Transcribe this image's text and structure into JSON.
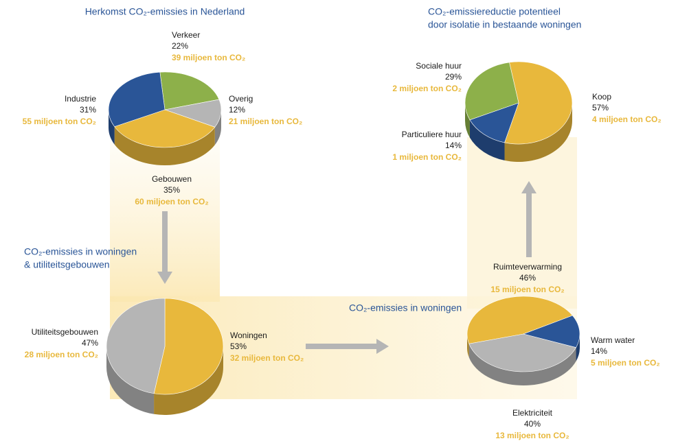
{
  "chart_data": [
    {
      "type": "pie",
      "title": [
        "Herkomst CO₂-emissies in Nederland"
      ],
      "categories": [
        "Verkeer",
        "Overig",
        "Gebouwen",
        "Industrie"
      ],
      "values": [
        22,
        12,
        35,
        31
      ],
      "value_labels": [
        "22%",
        "12%",
        "35%",
        "31%"
      ],
      "amount_labels": [
        "39 miljoen ton CO₂",
        "21 miljoen ton CO₂",
        "60 miljoen ton CO₂",
        "55 miljoen ton CO₂"
      ],
      "colors": [
        "#8db04a",
        "#b5b5b5",
        "#e8b83c",
        "#2a5597"
      ]
    },
    {
      "type": "pie",
      "title": [
        "CO₂-emissies in woningen",
        "& utiliteitsgebouwen"
      ],
      "categories": [
        "Woningen",
        "Utiliteitsgebouwen"
      ],
      "values": [
        53,
        47
      ],
      "value_labels": [
        "53%",
        "47%"
      ],
      "amount_labels": [
        "32 miljoen ton CO₂",
        "28 miljoen ton CO₂"
      ],
      "colors": [
        "#e8b83c",
        "#b5b5b5"
      ]
    },
    {
      "type": "pie",
      "title": [
        "CO₂-emissies in woningen"
      ],
      "categories": [
        "Ruimteverwarming",
        "Warm water",
        "Elektriciteit"
      ],
      "values": [
        46,
        14,
        40
      ],
      "value_labels": [
        "46%",
        "14%",
        "40%"
      ],
      "amount_labels": [
        "15 miljoen ton CO₂",
        "5 miljoen ton CO₂",
        "13 miljoen ton CO₂"
      ],
      "colors": [
        "#e8b83c",
        "#2a5597",
        "#b5b5b5"
      ]
    },
    {
      "type": "pie",
      "title": [
        "CO₂-emissiereductie potentieel",
        "door isolatie in bestaande woningen"
      ],
      "categories": [
        "Koop",
        "Particuliere huur",
        "Sociale huur"
      ],
      "values": [
        57,
        14,
        29
      ],
      "value_labels": [
        "57%",
        "14%",
        "29%"
      ],
      "amount_labels": [
        "4 miljoen ton CO₂",
        "1 miljoen ton CO₂",
        "2 miljoen ton CO₂"
      ],
      "colors": [
        "#e8b83c",
        "#2a5597",
        "#8db04a"
      ]
    }
  ]
}
